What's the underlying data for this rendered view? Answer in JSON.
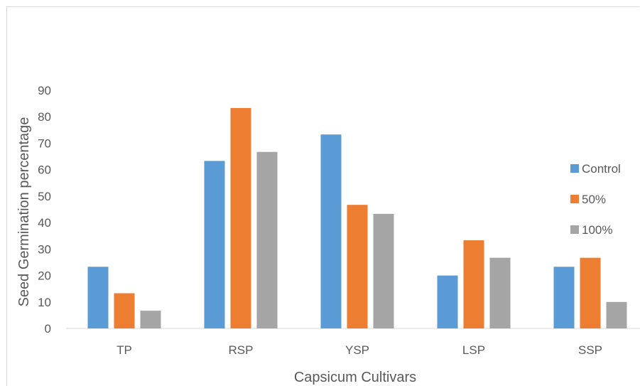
{
  "chart_data": {
    "type": "bar",
    "title": "",
    "xlabel": "Capsicum Cultivars",
    "ylabel": "Seed Germination percentage",
    "ylim": [
      0,
      90
    ],
    "yticks": [
      0,
      10,
      20,
      30,
      40,
      50,
      60,
      70,
      80,
      90
    ],
    "categories": [
      "TP",
      "RSP",
      "YSP",
      "LSP",
      "SSP"
    ],
    "series": [
      {
        "name": "Control",
        "color": "#5b9bd5",
        "values": [
          23.3,
          63.3,
          73.3,
          20,
          23.3
        ]
      },
      {
        "name": "50%",
        "color": "#ed7d31",
        "values": [
          13.3,
          83.3,
          46.7,
          33.3,
          26.7
        ]
      },
      {
        "name": "100%",
        "color": "#a5a5a5",
        "values": [
          6.7,
          66.7,
          43.3,
          26.7,
          10
        ]
      }
    ],
    "grid": false,
    "legend_position": "right"
  }
}
